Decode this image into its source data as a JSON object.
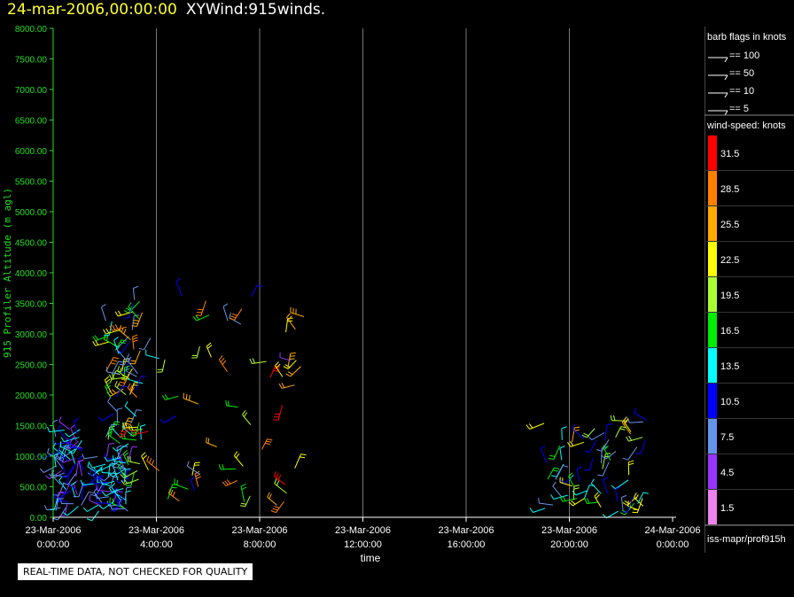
{
  "header": {
    "date": "24-mar-2006,00:00:00",
    "product": "XYWind:915winds."
  },
  "qa_note": "REAL-TIME DATA, NOT CHECKED FOR QUALITY",
  "legend": {
    "barb_title": "barb flags in knots",
    "barb_items": [
      "== 100",
      "== 50",
      "== 10",
      "== 5"
    ],
    "speed_title": "wind-speed: knots",
    "footer": "iss-mapr/prof915h"
  },
  "chart_data": {
    "type": "scatter",
    "title": "",
    "xlabel": "time",
    "ylabel": "915 Profiler Altitude (m agl)",
    "ylim": [
      0,
      8000
    ],
    "xlim_hours": [
      0,
      24
    ],
    "y_ticks": [
      "0.00",
      "500.00",
      "1000.00",
      "1500.00",
      "2000.00",
      "2500.00",
      "3000.00",
      "3500.00",
      "4000.00",
      "4500.00",
      "5000.00",
      "5500.00",
      "6000.00",
      "6500.00",
      "7000.00",
      "7500.00",
      "8000.00"
    ],
    "x_ticks": [
      {
        "date": "23-Mar-2006",
        "time": "0:00:00"
      },
      {
        "date": "23-Mar-2006",
        "time": "4:00:00"
      },
      {
        "date": "23-Mar-2006",
        "time": "8:00:00"
      },
      {
        "date": "23-Mar-2006",
        "time": "12:00:00"
      },
      {
        "date": "23-Mar-2006",
        "time": "16:00:00"
      },
      {
        "date": "23-Mar-2006",
        "time": "20:00:00"
      },
      {
        "date": "24-Mar-2006",
        "time": "0:00:00"
      }
    ],
    "vertical_grid": true,
    "speed_colors": [
      {
        "label": "31.5",
        "color": "#ff0000"
      },
      {
        "label": "28.5",
        "color": "#ff8000"
      },
      {
        "label": "25.5",
        "color": "#ffaa00"
      },
      {
        "label": "22.5",
        "color": "#ffff00"
      },
      {
        "label": "19.5",
        "color": "#aaff33"
      },
      {
        "label": "16.5",
        "color": "#00ee00"
      },
      {
        "label": "13.5",
        "color": "#00ffff"
      },
      {
        "label": "10.5",
        "color": "#0000ff"
      },
      {
        "label": "7.5",
        "color": "#6495ed"
      },
      {
        "label": "4.5",
        "color": "#9933ff"
      },
      {
        "label": "1.5",
        "color": "#ee82ee"
      }
    ],
    "data_clusters": [
      {
        "t_start": 0.1,
        "t_end": 1.2,
        "alt_min": 100,
        "alt_max": 1450,
        "speed_min": 4,
        "speed_max": 14
      },
      {
        "t_start": 1.7,
        "t_end": 3.0,
        "alt_min": 100,
        "alt_max": 1000,
        "speed_min": 5,
        "speed_max": 16
      },
      {
        "t_start": 2.0,
        "t_end": 3.5,
        "alt_min": 1200,
        "alt_max": 3700,
        "speed_min": 6,
        "speed_max": 31
      },
      {
        "t_start": 3.0,
        "t_end": 10.0,
        "alt_min": 200,
        "alt_max": 3700,
        "speed_min": 5,
        "speed_max": 32
      },
      {
        "t_start": 19.0,
        "t_end": 23.0,
        "alt_min": 100,
        "alt_max": 1600,
        "speed_min": 6,
        "speed_max": 26
      }
    ]
  }
}
